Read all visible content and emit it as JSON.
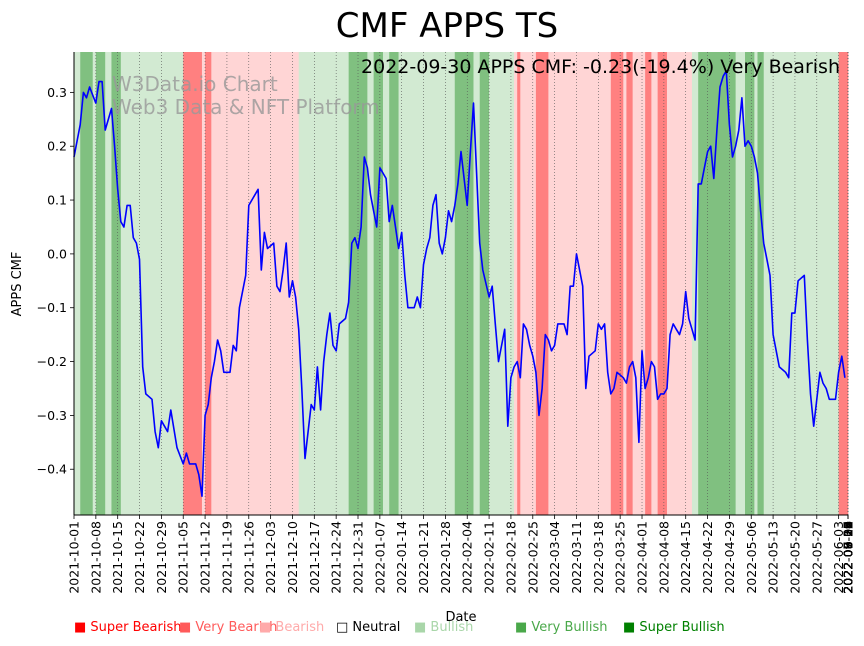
{
  "chart_data": {
    "type": "line",
    "title": "CMF APPS TS",
    "subtitle": "2022-09-30 APPS CMF: -0.23(-19.4%) Very Bearish",
    "watermark": [
      "W3Data.io Chart",
      "Web3 Data & NFT Platform"
    ],
    "xlabel": "Date",
    "ylabel": "APPS CMF",
    "ylim": [
      -0.485,
      0.375
    ],
    "xlim": [
      "2021-10-01",
      "2022-09-30"
    ],
    "yticks": [
      -0.4,
      -0.3,
      -0.2,
      -0.1,
      0.0,
      0.1,
      0.2,
      0.3
    ],
    "ytick_labels": [
      "−0.4",
      "−0.3",
      "−0.2",
      "−0.1",
      "0.0",
      "0.1",
      "0.2",
      "0.3"
    ],
    "xtick_labels": [
      "2021-10-01",
      "2021-10-08",
      "2021-10-15",
      "2021-10-22",
      "2021-10-29",
      "2021-11-05",
      "2021-11-12",
      "2021-11-19",
      "2021-11-26",
      "2021-12-03",
      "2021-12-10",
      "2021-12-17",
      "2021-12-24",
      "2021-12-31",
      "2022-01-07",
      "2022-01-14",
      "2022-01-21",
      "2022-01-28",
      "2022-02-04",
      "2022-02-11",
      "2022-02-18",
      "2022-02-25",
      "2022-03-04",
      "2022-03-11",
      "2022-03-18",
      "2022-03-25",
      "2022-04-01",
      "2022-04-08",
      "2022-04-15",
      "2022-04-22",
      "2022-04-29",
      "2022-05-06",
      "2022-05-13",
      "2022-05-20",
      "2022-05-27",
      "2022-06-03",
      "2022-06-10",
      "2022-06-17",
      "2022-06-24",
      "2022-07-01",
      "2022-07-08",
      "2022-07-15",
      "2022-07-22",
      "2022-07-29",
      "2022-08-05",
      "2022-08-12",
      "2022-08-19",
      "2022-08-26",
      "2022-09-02",
      "2022-09-09",
      "2022-09-16",
      "2022-09-23",
      "2022-09-30"
    ],
    "series": [
      {
        "name": "APPS CMF",
        "color": "#0000ff",
        "points": [
          [
            0,
            0.18
          ],
          [
            2,
            0.24
          ],
          [
            3,
            0.3
          ],
          [
            4,
            0.29
          ],
          [
            5,
            0.31
          ],
          [
            7,
            0.28
          ],
          [
            8,
            0.32
          ],
          [
            9,
            0.32
          ],
          [
            10,
            0.23
          ],
          [
            12,
            0.27
          ],
          [
            13,
            0.2
          ],
          [
            14,
            0.12
          ],
          [
            15,
            0.06
          ],
          [
            16,
            0.05
          ],
          [
            17,
            0.09
          ],
          [
            18,
            0.09
          ],
          [
            19,
            0.03
          ],
          [
            20,
            0.02
          ],
          [
            21,
            -0.01
          ],
          [
            22,
            -0.21
          ],
          [
            23,
            -0.26
          ],
          [
            25,
            -0.27
          ],
          [
            26,
            -0.33
          ],
          [
            27,
            -0.36
          ],
          [
            28,
            -0.31
          ],
          [
            29,
            -0.32
          ],
          [
            30,
            -0.33
          ],
          [
            31,
            -0.29
          ],
          [
            33,
            -0.36
          ],
          [
            35,
            -0.39
          ],
          [
            36,
            -0.37
          ],
          [
            37,
            -0.39
          ],
          [
            39,
            -0.39
          ],
          [
            40,
            -0.41
          ],
          [
            41,
            -0.45
          ],
          [
            42,
            -0.3
          ],
          [
            43,
            -0.28
          ],
          [
            44,
            -0.23
          ],
          [
            45,
            -0.2
          ],
          [
            46,
            -0.16
          ],
          [
            47,
            -0.18
          ],
          [
            48,
            -0.22
          ],
          [
            50,
            -0.22
          ],
          [
            51,
            -0.17
          ],
          [
            52,
            -0.18
          ],
          [
            53,
            -0.1
          ],
          [
            55,
            -0.04
          ],
          [
            56,
            0.09
          ],
          [
            58,
            0.11
          ],
          [
            59,
            0.12
          ],
          [
            60,
            -0.03
          ],
          [
            61,
            0.04
          ],
          [
            62,
            0.01
          ],
          [
            64,
            0.02
          ],
          [
            65,
            -0.06
          ],
          [
            66,
            -0.07
          ],
          [
            67,
            -0.03
          ],
          [
            68,
            0.02
          ],
          [
            69,
            -0.08
          ],
          [
            70,
            -0.05
          ],
          [
            71,
            -0.08
          ],
          [
            72,
            -0.14
          ],
          [
            73,
            -0.25
          ],
          [
            74,
            -0.38
          ],
          [
            75,
            -0.33
          ],
          [
            76,
            -0.28
          ],
          [
            77,
            -0.29
          ],
          [
            78,
            -0.21
          ],
          [
            79,
            -0.29
          ],
          [
            80,
            -0.2
          ],
          [
            81,
            -0.15
          ],
          [
            82,
            -0.11
          ],
          [
            83,
            -0.17
          ],
          [
            84,
            -0.18
          ],
          [
            85,
            -0.13
          ],
          [
            87,
            -0.12
          ],
          [
            88,
            -0.09
          ],
          [
            89,
            0.02
          ],
          [
            90,
            0.03
          ],
          [
            91,
            0.01
          ],
          [
            92,
            0.05
          ],
          [
            93,
            0.18
          ],
          [
            94,
            0.16
          ],
          [
            95,
            0.11
          ],
          [
            97,
            0.05
          ],
          [
            98,
            0.16
          ],
          [
            100,
            0.14
          ],
          [
            101,
            0.06
          ],
          [
            102,
            0.09
          ],
          [
            103,
            0.05
          ],
          [
            104,
            0.01
          ],
          [
            105,
            0.04
          ],
          [
            106,
            -0.04
          ],
          [
            107,
            -0.1
          ],
          [
            109,
            -0.1
          ],
          [
            110,
            -0.08
          ],
          [
            111,
            -0.1
          ],
          [
            112,
            -0.02
          ],
          [
            113,
            0.01
          ],
          [
            114,
            0.03
          ],
          [
            115,
            0.09
          ],
          [
            116,
            0.11
          ],
          [
            117,
            0.02
          ],
          [
            118,
            0.0
          ],
          [
            119,
            0.03
          ],
          [
            120,
            0.08
          ],
          [
            121,
            0.06
          ],
          [
            122,
            0.09
          ],
          [
            123,
            0.13
          ],
          [
            124,
            0.19
          ],
          [
            125,
            0.14
          ],
          [
            126,
            0.09
          ],
          [
            127,
            0.19
          ],
          [
            128,
            0.28
          ],
          [
            129,
            0.15
          ],
          [
            130,
            0.02
          ],
          [
            131,
            -0.03
          ],
          [
            133,
            -0.08
          ],
          [
            134,
            -0.06
          ],
          [
            135,
            -0.13
          ],
          [
            136,
            -0.2
          ],
          [
            137,
            -0.17
          ],
          [
            138,
            -0.14
          ],
          [
            139,
            -0.32
          ],
          [
            140,
            -0.23
          ],
          [
            141,
            -0.21
          ],
          [
            142,
            -0.2
          ],
          [
            143,
            -0.23
          ],
          [
            144,
            -0.13
          ],
          [
            145,
            -0.14
          ],
          [
            146,
            -0.17
          ],
          [
            147,
            -0.19
          ],
          [
            148,
            -0.22
          ],
          [
            149,
            -0.3
          ],
          [
            150,
            -0.25
          ],
          [
            151,
            -0.15
          ],
          [
            152,
            -0.16
          ],
          [
            153,
            -0.18
          ],
          [
            154,
            -0.17
          ],
          [
            155,
            -0.13
          ],
          [
            157,
            -0.13
          ],
          [
            158,
            -0.15
          ],
          [
            159,
            -0.06
          ],
          [
            160,
            -0.06
          ],
          [
            161,
            0.0
          ],
          [
            163,
            -0.06
          ],
          [
            164,
            -0.25
          ],
          [
            165,
            -0.19
          ],
          [
            167,
            -0.18
          ],
          [
            168,
            -0.13
          ],
          [
            169,
            -0.14
          ],
          [
            170,
            -0.13
          ],
          [
            171,
            -0.22
          ],
          [
            172,
            -0.26
          ],
          [
            173,
            -0.25
          ],
          [
            174,
            -0.22
          ],
          [
            176,
            -0.23
          ],
          [
            177,
            -0.24
          ],
          [
            178,
            -0.21
          ],
          [
            179,
            -0.2
          ],
          [
            180,
            -0.23
          ],
          [
            181,
            -0.35
          ],
          [
            182,
            -0.18
          ],
          [
            183,
            -0.25
          ],
          [
            184,
            -0.23
          ],
          [
            185,
            -0.2
          ],
          [
            186,
            -0.21
          ],
          [
            187,
            -0.27
          ],
          [
            188,
            -0.26
          ],
          [
            189,
            -0.26
          ],
          [
            190,
            -0.25
          ],
          [
            191,
            -0.15
          ],
          [
            192,
            -0.13
          ],
          [
            193,
            -0.14
          ],
          [
            194,
            -0.15
          ],
          [
            195,
            -0.13
          ],
          [
            196,
            -0.07
          ],
          [
            197,
            -0.12
          ],
          [
            198,
            -0.14
          ],
          [
            199,
            -0.16
          ],
          [
            200,
            0.13
          ],
          [
            201,
            0.13
          ],
          [
            202,
            0.16
          ],
          [
            203,
            0.19
          ],
          [
            204,
            0.2
          ],
          [
            205,
            0.14
          ],
          [
            206,
            0.23
          ],
          [
            207,
            0.31
          ],
          [
            208,
            0.33
          ],
          [
            209,
            0.34
          ],
          [
            210,
            0.24
          ],
          [
            211,
            0.18
          ],
          [
            212,
            0.2
          ],
          [
            213,
            0.23
          ],
          [
            214,
            0.29
          ],
          [
            215,
            0.2
          ],
          [
            216,
            0.21
          ],
          [
            217,
            0.2
          ],
          [
            218,
            0.18
          ],
          [
            219,
            0.15
          ],
          [
            220,
            0.08
          ],
          [
            221,
            0.02
          ],
          [
            222,
            -0.01
          ],
          [
            223,
            -0.04
          ],
          [
            224,
            -0.15
          ],
          [
            225,
            -0.18
          ],
          [
            226,
            -0.21
          ],
          [
            228,
            -0.22
          ],
          [
            229,
            -0.23
          ],
          [
            230,
            -0.11
          ],
          [
            231,
            -0.11
          ],
          [
            232,
            -0.05
          ],
          [
            234,
            -0.04
          ],
          [
            235,
            -0.16
          ],
          [
            236,
            -0.26
          ],
          [
            237,
            -0.32
          ],
          [
            238,
            -0.27
          ],
          [
            239,
            -0.22
          ],
          [
            240,
            -0.24
          ],
          [
            241,
            -0.25
          ],
          [
            242,
            -0.27
          ],
          [
            244,
            -0.27
          ],
          [
            245,
            -0.22
          ],
          [
            246,
            -0.19
          ],
          [
            247,
            -0.23
          ]
        ]
      }
    ],
    "bands": [
      {
        "start": 0,
        "end": 2,
        "sentiment": "Bullish"
      },
      {
        "start": 2,
        "end": 6,
        "sentiment": "Very Bullish"
      },
      {
        "start": 6,
        "end": 7,
        "sentiment": "Bullish"
      },
      {
        "start": 7,
        "end": 10,
        "sentiment": "Very Bullish"
      },
      {
        "start": 10,
        "end": 12,
        "sentiment": "Bullish"
      },
      {
        "start": 12,
        "end": 15,
        "sentiment": "Very Bullish"
      },
      {
        "start": 15,
        "end": 35,
        "sentiment": "Bullish"
      },
      {
        "start": 35,
        "end": 41,
        "sentiment": "Very Bearish"
      },
      {
        "start": 41,
        "end": 42,
        "sentiment": "Bearish"
      },
      {
        "start": 42,
        "end": 44,
        "sentiment": "Very Bearish"
      },
      {
        "start": 44,
        "end": 72,
        "sentiment": "Bearish"
      },
      {
        "start": 72,
        "end": 88,
        "sentiment": "Bullish"
      },
      {
        "start": 88,
        "end": 94,
        "sentiment": "Very Bullish"
      },
      {
        "start": 94,
        "end": 96,
        "sentiment": "Bullish"
      },
      {
        "start": 96,
        "end": 99,
        "sentiment": "Very Bullish"
      },
      {
        "start": 99,
        "end": 101,
        "sentiment": "Bullish"
      },
      {
        "start": 101,
        "end": 104,
        "sentiment": "Very Bullish"
      },
      {
        "start": 104,
        "end": 122,
        "sentiment": "Bullish"
      },
      {
        "start": 122,
        "end": 128,
        "sentiment": "Very Bullish"
      },
      {
        "start": 128,
        "end": 130,
        "sentiment": "Bullish"
      },
      {
        "start": 130,
        "end": 133,
        "sentiment": "Very Bullish"
      },
      {
        "start": 133,
        "end": 141,
        "sentiment": "Bullish"
      },
      {
        "start": 141,
        "end": 142,
        "sentiment": "Bearish"
      },
      {
        "start": 142,
        "end": 143,
        "sentiment": "Very Bearish"
      },
      {
        "start": 143,
        "end": 148,
        "sentiment": "Bearish"
      },
      {
        "start": 148,
        "end": 152,
        "sentiment": "Very Bearish"
      },
      {
        "start": 152,
        "end": 172,
        "sentiment": "Bearish"
      },
      {
        "start": 172,
        "end": 176,
        "sentiment": "Very Bearish"
      },
      {
        "start": 176,
        "end": 177,
        "sentiment": "Bearish"
      },
      {
        "start": 177,
        "end": 179,
        "sentiment": "Very Bearish"
      },
      {
        "start": 179,
        "end": 183,
        "sentiment": "Bearish"
      },
      {
        "start": 183,
        "end": 185,
        "sentiment": "Very Bearish"
      },
      {
        "start": 185,
        "end": 187,
        "sentiment": "Bearish"
      },
      {
        "start": 187,
        "end": 190,
        "sentiment": "Very Bearish"
      },
      {
        "start": 190,
        "end": 198,
        "sentiment": "Bearish"
      },
      {
        "start": 198,
        "end": 200,
        "sentiment": "Bullish"
      },
      {
        "start": 200,
        "end": 212,
        "sentiment": "Very Bullish"
      },
      {
        "start": 212,
        "end": 215,
        "sentiment": "Bullish"
      },
      {
        "start": 215,
        "end": 218,
        "sentiment": "Very Bullish"
      },
      {
        "start": 218,
        "end": 219,
        "sentiment": "Bullish"
      },
      {
        "start": 219,
        "end": 221,
        "sentiment": "Very Bullish"
      },
      {
        "start": 221,
        "end": 245,
        "sentiment": "Bullish"
      },
      {
        "start": 245,
        "end": 248,
        "sentiment": "Very Bearish"
      }
    ],
    "legend": [
      {
        "label": "Super Bearish",
        "color": "#ff0000"
      },
      {
        "label": "Very Bearish",
        "color": "#ff5a5a"
      },
      {
        "label": "Bearish",
        "color": "#ffaaaa"
      },
      {
        "label": "Neutral",
        "color": "#000000"
      },
      {
        "label": "Bullish",
        "color": "#a9d6a9"
      },
      {
        "label": "Very Bullish",
        "color": "#4aa84a"
      },
      {
        "label": "Super Bullish",
        "color": "#008000"
      }
    ],
    "band_colors": {
      "Bullish": "#d2ead2",
      "Very Bullish": "#80c080",
      "Bearish": "#ffd5d5",
      "Very Bearish": "#ff8080"
    },
    "total_days": 248
  }
}
